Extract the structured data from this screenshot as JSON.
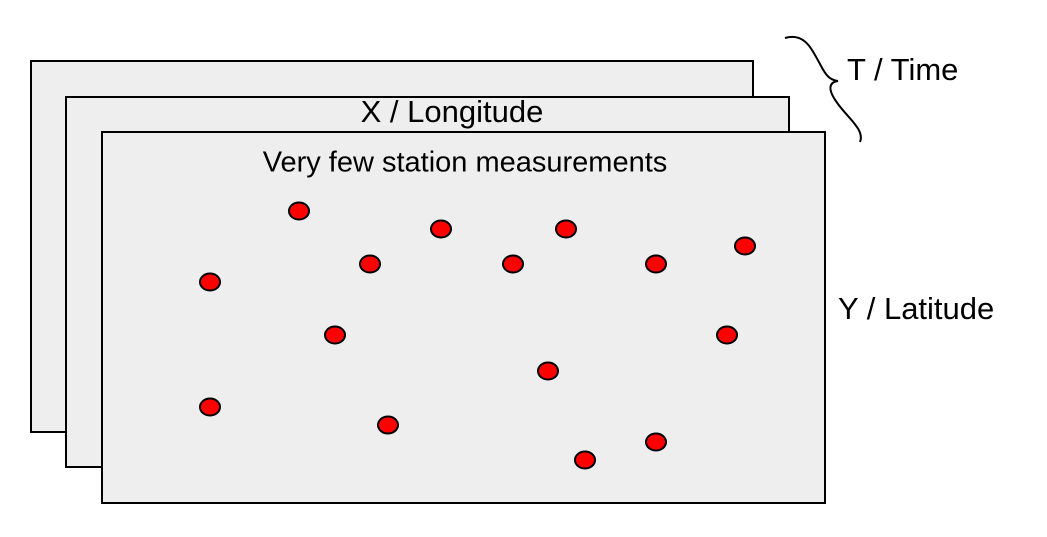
{
  "time_label": "T / Time",
  "x_label": "X / Longitude",
  "panel_title": "Very few station measurements",
  "y_label": "Y / Latitude"
}
